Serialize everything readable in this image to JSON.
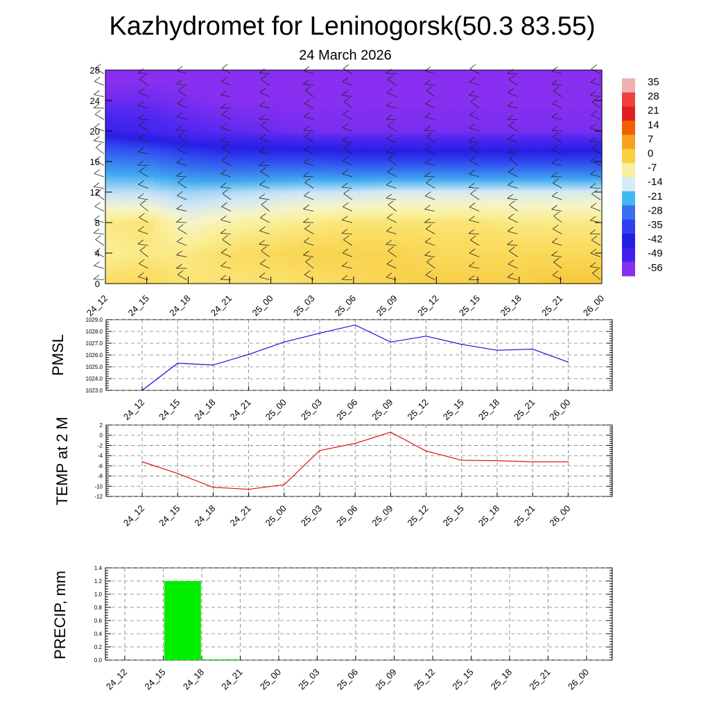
{
  "title": "Kazhydromet for Leninogorsk(50.3 83.55)",
  "subtitle": "24 March 2026",
  "time_labels": [
    "24_12",
    "24_15",
    "24_18",
    "24_21",
    "25_00",
    "25_03",
    "25_06",
    "25_09",
    "25_12",
    "25_15",
    "25_18",
    "25_21",
    "26_00"
  ],
  "chart_data": [
    {
      "type": "heatmap",
      "title": "Kazhydromet for Leninogorsk(50.3 83.55)",
      "subtitle": "24 March 2026",
      "x": [
        "24_12",
        "24_15",
        "24_18",
        "24_21",
        "25_00",
        "25_03",
        "25_06",
        "25_09",
        "25_12",
        "25_15",
        "25_18",
        "25_21",
        "26_00"
      ],
      "ylim": [
        0,
        28
      ],
      "yticks": [
        0,
        4,
        8,
        12,
        16,
        20,
        24,
        28
      ],
      "colorbar": {
        "labels": [
          35,
          28,
          21,
          14,
          7,
          0,
          -7,
          -14,
          -21,
          -28,
          -35,
          -42,
          -49,
          -56
        ],
        "colors": [
          "#f0b0b0",
          "#f04040",
          "#e02020",
          "#f06000",
          "#f8a020",
          "#f8d040",
          "#f8f0a0",
          "#d8eaf8",
          "#40b8f0",
          "#3870f0",
          "#3040f0",
          "#2020e0",
          "#4020f0",
          "#8830f0"
        ]
      },
      "temperature_profiles": [
        [
          -9,
          -12,
          -11,
          -20,
          -33,
          -48,
          -54,
          -57
        ],
        [
          -8,
          -11,
          -10,
          -20,
          -34,
          -50,
          -54,
          -57
        ],
        [
          -10,
          -11,
          -15,
          -22,
          -38,
          -52,
          -55,
          -57
        ],
        [
          -10,
          -9,
          -13,
          -21,
          -40,
          -53,
          -56,
          -57
        ],
        [
          -10,
          -8,
          -12,
          -20,
          -40,
          -54,
          -56,
          -57
        ],
        [
          -9,
          -7,
          -11,
          -19,
          -40,
          -55,
          -56,
          -57
        ],
        [
          -8,
          -7,
          -10,
          -19,
          -41,
          -55,
          -56,
          -57
        ],
        [
          -7,
          -7,
          -10,
          -18,
          -41,
          -55,
          -56,
          -57
        ],
        [
          -6,
          -8,
          -10,
          -18,
          -41,
          -55,
          -56,
          -57
        ],
        [
          -6,
          -8,
          -10,
          -18,
          -41,
          -55,
          -56,
          -57
        ],
        [
          -6,
          -8,
          -11,
          -18,
          -41,
          -55,
          -56,
          -57
        ],
        [
          -5,
          -8,
          -11,
          -18,
          -41,
          -55,
          -56,
          -57
        ],
        [
          -5,
          -8,
          -11,
          -18,
          -41,
          -55,
          -56,
          -57
        ]
      ]
    },
    {
      "type": "line",
      "ylabel": "PMSL",
      "color": "#1010e0",
      "ylim": [
        1023.0,
        1029.0
      ],
      "yticks": [
        "1023.0",
        "1024.0",
        "1025.0",
        "1026.0",
        "1027.0",
        "1028.0",
        "1029.0"
      ],
      "x": [
        "24_12",
        "24_15",
        "24_18",
        "24_21",
        "25_00",
        "25_03",
        "25_06",
        "25_09",
        "25_12",
        "25_15",
        "25_18",
        "25_21",
        "26_00"
      ],
      "values": [
        1023.0,
        1025.3,
        1025.15,
        1026.05,
        1027.1,
        1027.85,
        1028.55,
        1027.1,
        1027.6,
        1026.9,
        1026.4,
        1026.5,
        1025.4
      ]
    },
    {
      "type": "line",
      "ylabel": "TEMP at 2 M",
      "color": "#e01010",
      "ylim": [
        -12,
        2
      ],
      "yticks": [
        "-12",
        "-10",
        "-8",
        "-6",
        "-4",
        "-2",
        "0",
        "2"
      ],
      "x": [
        "24_12",
        "24_15",
        "24_18",
        "24_21",
        "25_00",
        "25_03",
        "25_06",
        "25_09",
        "25_12",
        "25_15",
        "25_18",
        "25_21",
        "26_00"
      ],
      "values": [
        -5.2,
        -7.5,
        -10.2,
        -10.6,
        -9.7,
        -3.0,
        -1.6,
        0.6,
        -3.1,
        -4.9,
        -5.0,
        -5.2,
        -5.2
      ]
    },
    {
      "type": "bar",
      "ylabel": "PRECIP, mm",
      "color": "#00ee00",
      "ylim": [
        0,
        1.4
      ],
      "yticks": [
        "0.0",
        "0.2",
        "0.4",
        "0.6",
        "0.8",
        "1.0",
        "1.2",
        "1.4"
      ],
      "x": [
        "24_12",
        "24_15",
        "24_18",
        "24_21",
        "25_00",
        "25_03",
        "25_06",
        "25_09",
        "25_12",
        "25_15",
        "25_18",
        "25_21",
        "26_00"
      ],
      "values": [
        0,
        1.2,
        0.01,
        0,
        0,
        0,
        0,
        0,
        0,
        0,
        0,
        0,
        0
      ]
    }
  ]
}
